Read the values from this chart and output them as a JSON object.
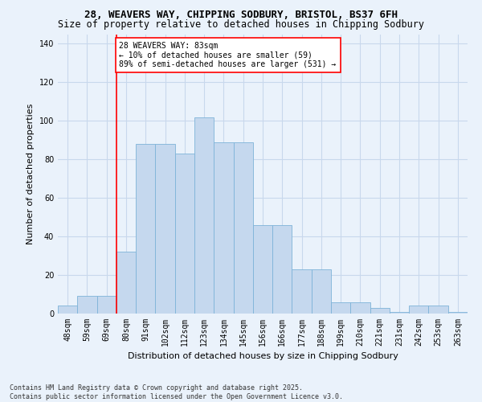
{
  "title_line1": "28, WEAVERS WAY, CHIPPING SODBURY, BRISTOL, BS37 6FH",
  "title_line2": "Size of property relative to detached houses in Chipping Sodbury",
  "xlabel": "Distribution of detached houses by size in Chipping Sodbury",
  "ylabel": "Number of detached properties",
  "bin_labels": [
    "48sqm",
    "59sqm",
    "69sqm",
    "80sqm",
    "91sqm",
    "102sqm",
    "112sqm",
    "123sqm",
    "134sqm",
    "145sqm",
    "156sqm",
    "166sqm",
    "177sqm",
    "188sqm",
    "199sqm",
    "210sqm",
    "221sqm",
    "231sqm",
    "242sqm",
    "253sqm",
    "263sqm"
  ],
  "bar_heights": [
    4,
    9,
    9,
    32,
    88,
    88,
    83,
    102,
    89,
    89,
    46,
    46,
    23,
    23,
    6,
    6,
    3,
    1,
    4,
    4,
    1
  ],
  "bar_color": "#C5D8EE",
  "bar_edge_color": "#7EB3D8",
  "grid_color": "#C8D8EC",
  "red_line_bin_index": 3,
  "annotation_text": "28 WEAVERS WAY: 83sqm\n← 10% of detached houses are smaller (59)\n89% of semi-detached houses are larger (531) →",
  "ylim": [
    0,
    145
  ],
  "yticks": [
    0,
    20,
    40,
    60,
    80,
    100,
    120,
    140
  ],
  "footnote": "Contains HM Land Registry data © Crown copyright and database right 2025.\nContains public sector information licensed under the Open Government Licence v3.0.",
  "background_color": "#EAF2FB",
  "title_fontsize": 9,
  "subtitle_fontsize": 8.5,
  "ylabel_fontsize": 8,
  "xlabel_fontsize": 8,
  "tick_fontsize": 7,
  "annotation_fontsize": 7,
  "footnote_fontsize": 6
}
